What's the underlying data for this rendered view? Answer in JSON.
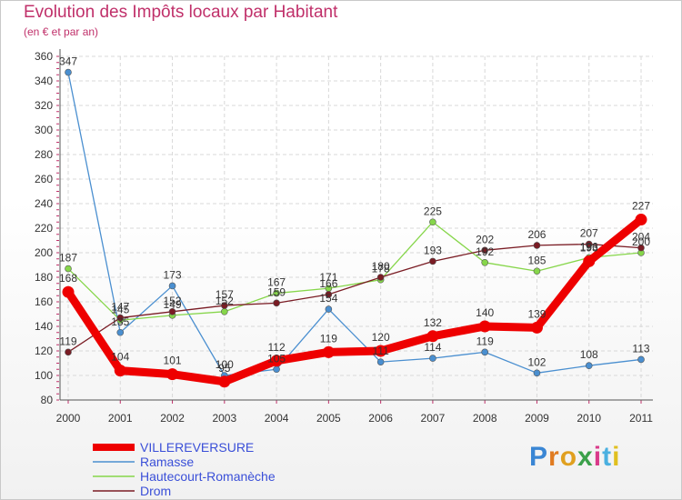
{
  "header": {
    "title": "Evolution des Impôts locaux par Habitant",
    "subtitle": "(en € et par an)"
  },
  "branding": {
    "logo_text": "Proxiti"
  },
  "chart_data": {
    "type": "line",
    "title": "Evolution des Impôts locaux par Habitant",
    "subtitle": "(en € et par an)",
    "xlabel": "",
    "ylabel": "",
    "categories": [
      "2000",
      "2001",
      "2002",
      "2003",
      "2004",
      "2005",
      "2006",
      "2007",
      "2008",
      "2009",
      "2010",
      "2011"
    ],
    "ylim": [
      80,
      360
    ],
    "yticks": [
      80,
      100,
      120,
      140,
      160,
      180,
      200,
      220,
      240,
      260,
      280,
      300,
      320,
      340,
      360
    ],
    "grid": true,
    "legend_position": "bottom-left",
    "series": [
      {
        "name": "VILLEREVERSURE",
        "color": "#ee0000",
        "values": [
          168,
          104,
          101,
          95,
          112,
          119,
          120,
          132,
          140,
          139,
          193,
          227
        ],
        "labels": [
          "168",
          "104",
          "101",
          "95",
          "112",
          "119",
          "120",
          "132",
          "140",
          "139",
          "193",
          "227"
        ]
      },
      {
        "name": "Ramasse",
        "color": "#4a8fd0",
        "values": [
          347,
          135,
          173,
          100,
          105,
          154,
          111,
          114,
          119,
          102,
          108,
          113
        ],
        "labels": [
          "347",
          "135",
          "173",
          "100",
          "105",
          "154",
          "111",
          "114",
          "119",
          "102",
          "108",
          "113"
        ]
      },
      {
        "name": "Hautecourt-Romanèche",
        "color": "#86d64a",
        "values": [
          187,
          145,
          149,
          152,
          167,
          171,
          178,
          225,
          192,
          185,
          196,
          200
        ],
        "labels": [
          "187",
          "145",
          "149",
          "152",
          "167",
          "171",
          "178",
          "225",
          "192",
          "185",
          "196",
          "200"
        ]
      },
      {
        "name": "Drom",
        "color": "#7a1c24",
        "values": [
          119,
          147,
          152,
          157,
          159,
          166,
          180,
          193,
          202,
          206,
          207,
          204
        ],
        "labels": [
          "119",
          "147",
          "152",
          "157",
          "159",
          "166",
          "180",
          "193",
          "202",
          "206",
          "207",
          "204"
        ]
      }
    ]
  }
}
